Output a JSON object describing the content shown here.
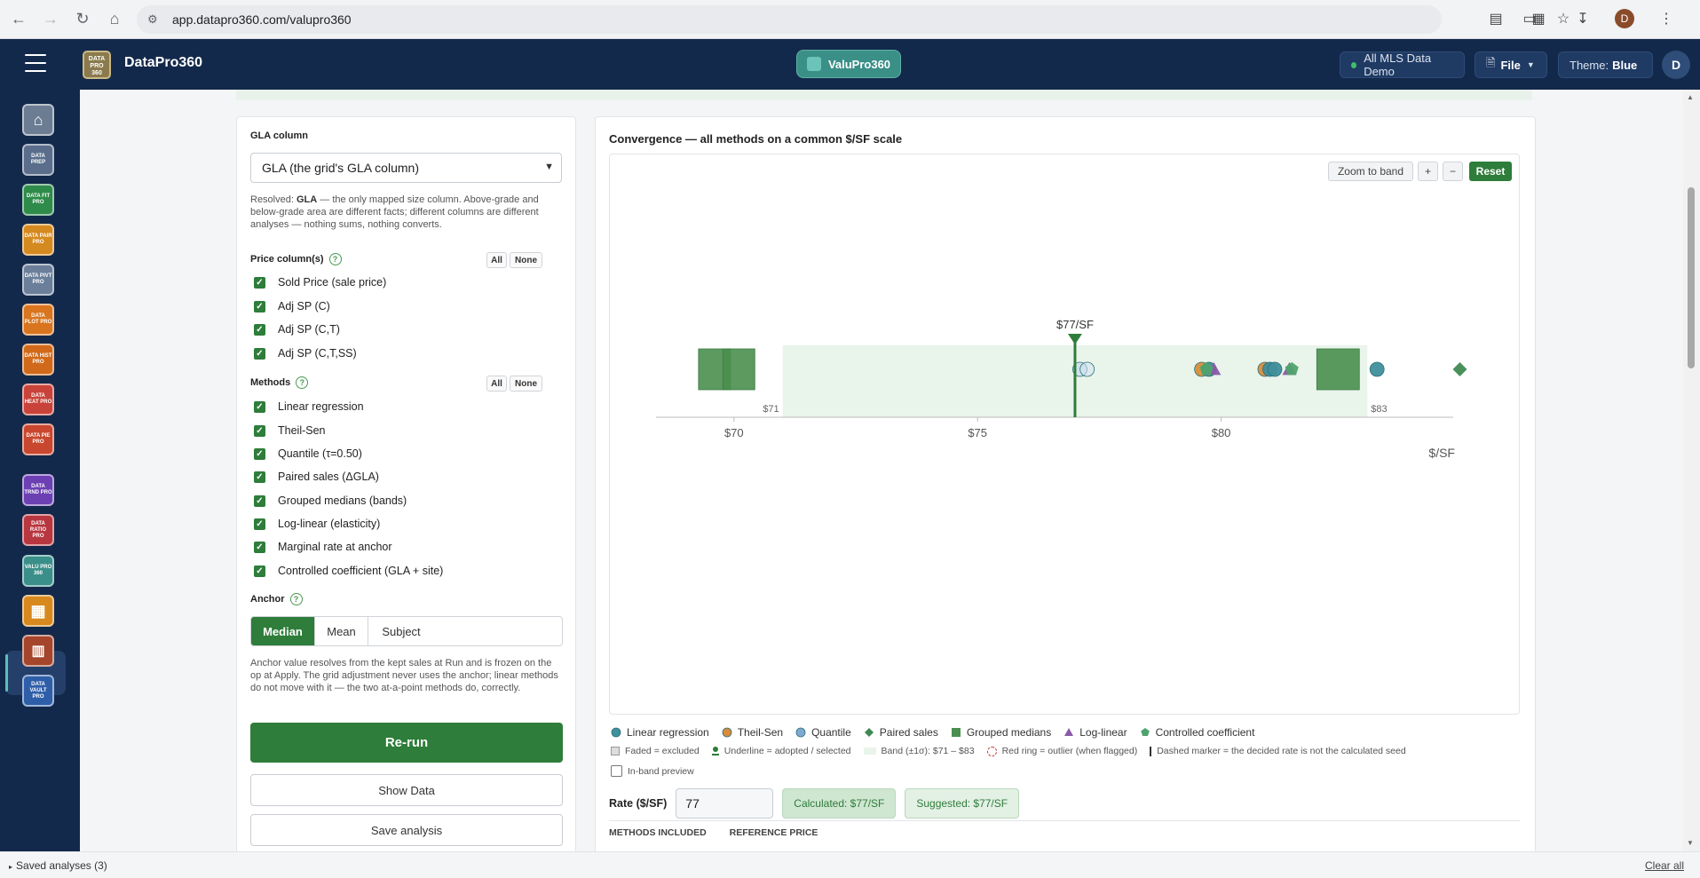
{
  "browser": {
    "url": "app.datapro360.com/valupro360"
  },
  "header": {
    "brand": "DataPro360",
    "logo_text": "DATA PRO 360",
    "app_pill": "ValuPro360",
    "dataset": "All MLS Data Demo",
    "file_menu": "File",
    "theme_label": "Theme:",
    "theme_value": "Blue",
    "user_initial": "D",
    "profile_initial": "D"
  },
  "sidebar": {
    "items": [
      {
        "name": "home",
        "text": "",
        "color": "#6b7c93"
      },
      {
        "name": "dataprep",
        "text": "DATA PREP",
        "color": "#5a6e8c"
      },
      {
        "name": "datafitpro",
        "text": "DATA FIT PRO",
        "color": "#2e8b4a"
      },
      {
        "name": "datapairpro",
        "text": "DATA PAIR PRO",
        "color": "#d58a1f"
      },
      {
        "name": "datapivtpro",
        "text": "DATA PIVT PRO",
        "color": "#6b7f9a"
      },
      {
        "name": "dataplotpro",
        "text": "DATA PLOT PRO",
        "color": "#d9751f"
      },
      {
        "name": "datahistpro",
        "text": "DATA HIST PRO",
        "color": "#d06a1a"
      },
      {
        "name": "dataheatpro",
        "text": "DATA HEAT PRO",
        "color": "#c9433a"
      },
      {
        "name": "datapiepro",
        "text": "DATA PIE PRO",
        "color": "#c8472e"
      },
      {
        "name": "datatrndpro",
        "text": "DATA TRND PRO",
        "color": "#6c3fb3"
      },
      {
        "name": "dataratiopro",
        "text": "DATA RATIO PRO",
        "color": "#b8363f"
      },
      {
        "name": "valupro360",
        "text": "VALU PRO 360",
        "color": "#3b8f8a"
      },
      {
        "name": "grid",
        "text": "",
        "color": "#d7891d"
      },
      {
        "name": "report",
        "text": "",
        "color": "#a5452c"
      },
      {
        "name": "datavaultpro",
        "text": "DATA VAULT PRO",
        "color": "#2f5ea8"
      }
    ]
  },
  "left_panel": {
    "gla_label": "GLA column",
    "gla_select": "GLA (the grid's GLA column)",
    "gla_help_prefix": "Resolved: ",
    "gla_help_bold": "GLA",
    "gla_help_rest": " — the only mapped size column. Above-grade and below-grade area are different facts; different columns are different analyses — nothing sums, nothing converts.",
    "price_label": "Price column(s)",
    "all": "All",
    "none": "None",
    "price_columns": [
      "Sold Price (sale price)",
      "Adj SP (C)",
      "Adj SP (C,T)",
      "Adj SP (C,T,SS)"
    ],
    "methods_label": "Methods",
    "methods": [
      "Linear regression",
      "Theil-Sen",
      "Quantile (τ=0.50)",
      "Paired sales (ΔGLA)",
      "Grouped medians (bands)",
      "Log-linear (elasticity)",
      "Marginal rate at anchor",
      "Controlled coefficient (GLA + site)"
    ],
    "anchor_label": "Anchor",
    "anchor_options": [
      "Median",
      "Mean",
      "Subject"
    ],
    "anchor_selected": "Median",
    "anchor_help": "Anchor value resolves from the kept sales at Run and is frozen on the op at Apply. The grid adjustment never uses the anchor; linear methods do not move with it — the two at-a-point methods do, correctly.",
    "rerun": "Re-run",
    "show_data": "Show Data",
    "save_analysis": "Save analysis"
  },
  "right_panel": {
    "title": "Convergence — all methods on a common $/SF scale",
    "zoom_to_band": "Zoom to band",
    "zoom_in": "+",
    "zoom_out": "−",
    "reset": "Reset",
    "legend": [
      {
        "label": "Linear regression",
        "shape": "circle",
        "color": "#3f8f9c"
      },
      {
        "label": "Theil-Sen",
        "shape": "circle",
        "color": "#d98c3a"
      },
      {
        "label": "Quantile",
        "shape": "circle",
        "color": "#7fa9d1"
      },
      {
        "label": "Paired sales",
        "shape": "diamond",
        "color": "#3f8a52"
      },
      {
        "label": "Grouped medians",
        "shape": "square",
        "color": "#4a8f4f"
      },
      {
        "label": "Log-linear",
        "shape": "triangle",
        "color": "#8a5aa8"
      },
      {
        "label": "Controlled coefficient",
        "shape": "pentagon",
        "color": "#4fa36d"
      }
    ],
    "legend2": [
      "Faded = excluded",
      "Underline = adopted / selected",
      "Band (±1σ): $71 – $83",
      "Red ring = outlier (when flagged)",
      "Dashed marker = the decided rate is not the calculated seed"
    ],
    "in_band_preview": "In-band preview",
    "rate_label": "Rate ($/SF)",
    "rate_value": "77",
    "calculated": "Calculated: $77/SF",
    "suggested": "Suggested: $77/SF",
    "methods_included": "METHODS INCLUDED",
    "reference_price": "REFERENCE PRICE"
  },
  "chart_data": {
    "type": "scatter",
    "title": "Convergence — all methods on a common $/SF scale",
    "xlabel": "$/SF",
    "xlim": [
      68.4,
      84.8
    ],
    "xticks": [
      70,
      75,
      80
    ],
    "xtick_labels": [
      "$70",
      "$75",
      "$80"
    ],
    "band": {
      "low": 71,
      "high": 83,
      "low_label": "$71",
      "high_label": "$83"
    },
    "rate": {
      "value": 77,
      "label": "$77/SF"
    },
    "points": [
      {
        "method": "Grouped medians",
        "shape": "square",
        "x": 69.6,
        "color": "#4a8f4f",
        "faded": false
      },
      {
        "method": "Grouped medians",
        "shape": "square",
        "x": 70.1,
        "color": "#4a8f4f",
        "faded": false
      },
      {
        "method": "Quantile",
        "shape": "circle",
        "x": 77.1,
        "color": "#b9d4ea",
        "faded": true
      },
      {
        "method": "Quantile",
        "shape": "circle",
        "x": 77.25,
        "color": "#cfe1f0",
        "faded": true
      },
      {
        "method": "Theil-Sen",
        "shape": "circle",
        "x": 79.6,
        "color": "#d98c3a",
        "faded": false
      },
      {
        "method": "Linear regression",
        "shape": "circle",
        "x": 79.75,
        "color": "#3f8f9c",
        "faded": false
      },
      {
        "method": "Log-linear",
        "shape": "triangle",
        "x": 79.85,
        "color": "#8a5aa8",
        "faded": false
      },
      {
        "method": "Controlled coefficient",
        "shape": "pentagon",
        "x": 79.7,
        "color": "#4fa36d",
        "faded": false
      },
      {
        "method": "Theil-Sen",
        "shape": "circle",
        "x": 80.9,
        "color": "#d98c3a",
        "faded": false
      },
      {
        "method": "Linear regression",
        "shape": "circle",
        "x": 81.0,
        "color": "#3f8f9c",
        "faded": false
      },
      {
        "method": "Quantile",
        "shape": "circle",
        "x": 81.1,
        "color": "#3f8f9c",
        "faded": false
      },
      {
        "method": "Log-linear",
        "shape": "triangle",
        "x": 81.4,
        "color": "#8a5aa8",
        "faded": false
      },
      {
        "method": "Controlled coefficient",
        "shape": "pentagon",
        "x": 81.45,
        "color": "#4fa36d",
        "faded": false
      },
      {
        "method": "Grouped medians",
        "shape": "square",
        "x": 82.4,
        "color": "#4a8f4f",
        "faded": false
      },
      {
        "method": "Linear regression",
        "shape": "circle",
        "x": 83.2,
        "color": "#3f8f9c",
        "faded": false
      },
      {
        "method": "Paired sales",
        "shape": "diamond",
        "x": 84.9,
        "color": "#3f8a52",
        "faded": false
      }
    ]
  },
  "footer": {
    "saved_analyses": "Saved analyses (3)",
    "clear_all": "Clear all"
  }
}
